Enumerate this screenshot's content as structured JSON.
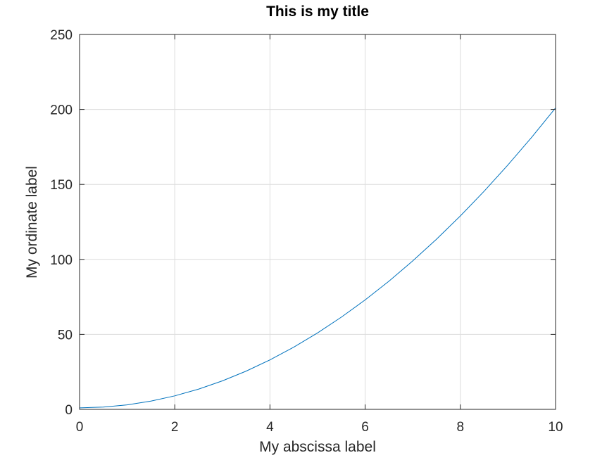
{
  "chart_data": {
    "type": "line",
    "title": "This is my title",
    "xlabel": "My abscissa label",
    "ylabel": "My ordinate label",
    "xlim": [
      0,
      10
    ],
    "ylim": [
      0,
      250
    ],
    "xticks": [
      0,
      2,
      4,
      6,
      8,
      10
    ],
    "yticks": [
      0,
      50,
      100,
      150,
      200,
      250
    ],
    "xtick_labels": [
      "0",
      "2",
      "4",
      "6",
      "8",
      "10"
    ],
    "ytick_labels": [
      "0",
      "50",
      "100",
      "150",
      "200",
      "250"
    ],
    "grid": true,
    "series": [
      {
        "color": "#0072bd",
        "x": [
          0,
          0.5,
          1,
          1.5,
          2,
          2.5,
          3,
          3.5,
          4,
          4.5,
          5,
          5.5,
          6,
          6.5,
          7,
          7.5,
          8,
          8.5,
          9,
          9.5,
          10
        ],
        "y": [
          1,
          1.5,
          3,
          5.5,
          9,
          13.5,
          19,
          25.5,
          33,
          41.5,
          51,
          61.5,
          73,
          85.5,
          99,
          113.5,
          129,
          145.5,
          163,
          181.5,
          201
        ]
      }
    ]
  }
}
